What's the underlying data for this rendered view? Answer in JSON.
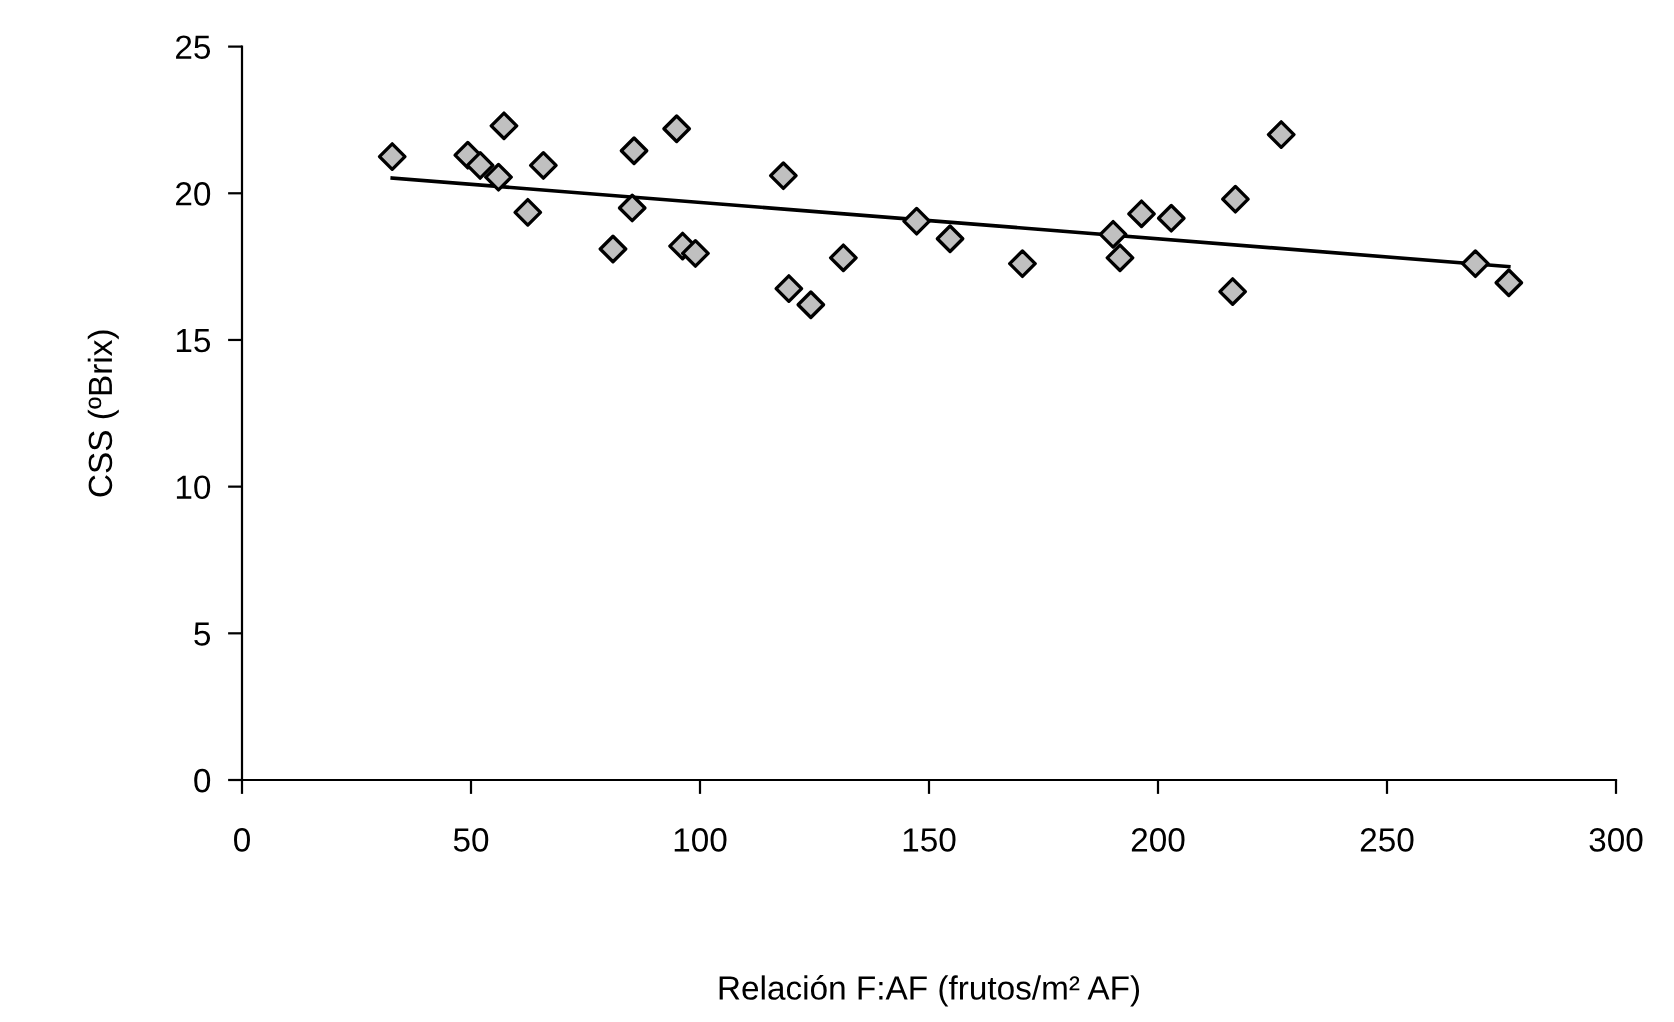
{
  "chart_data": {
    "type": "scatter",
    "xlabel": "Relación F:AF (frutos/m² AF)",
    "ylabel": "CSS (ºBrix)",
    "xlim": [
      0,
      300
    ],
    "xticks": [
      0,
      50,
      100,
      150,
      200,
      250,
      300
    ],
    "ylim": [
      0,
      25
    ],
    "yticks": [
      0,
      5,
      10,
      15,
      20,
      25
    ],
    "grid": false,
    "legend": false,
    "series": [
      {
        "marker": "diamond",
        "color": "#c0c0c0",
        "x": [
          32.8,
          49.3,
          52,
          57.2,
          56,
          65.8,
          62.4,
          81,
          85.6,
          85.2,
          94.9,
          96.2,
          99,
          118.2,
          119.4,
          124.2,
          131.3,
          147.3,
          154.6,
          170.4,
          190.2,
          191.7,
          196.4,
          202.9,
          216.9,
          226.9,
          216.3,
          269.3,
          276.6
        ],
        "values": [
          21.25,
          21.3,
          20.95,
          22.3,
          20.55,
          20.95,
          19.35,
          18.1,
          21.45,
          19.5,
          22.2,
          18.2,
          17.95,
          20.6,
          16.75,
          16.2,
          17.8,
          19.05,
          18.45,
          17.6,
          18.6,
          17.8,
          19.3,
          19.15,
          19.8,
          22.0,
          16.65,
          17.6,
          16.95
        ]
      },
      {
        "type": "line",
        "marker": "none",
        "line_style": "solid",
        "color": "#000000",
        "x": [
          32.8,
          276.6
        ],
        "values": [
          20.52,
          17.5
        ]
      }
    ]
  }
}
